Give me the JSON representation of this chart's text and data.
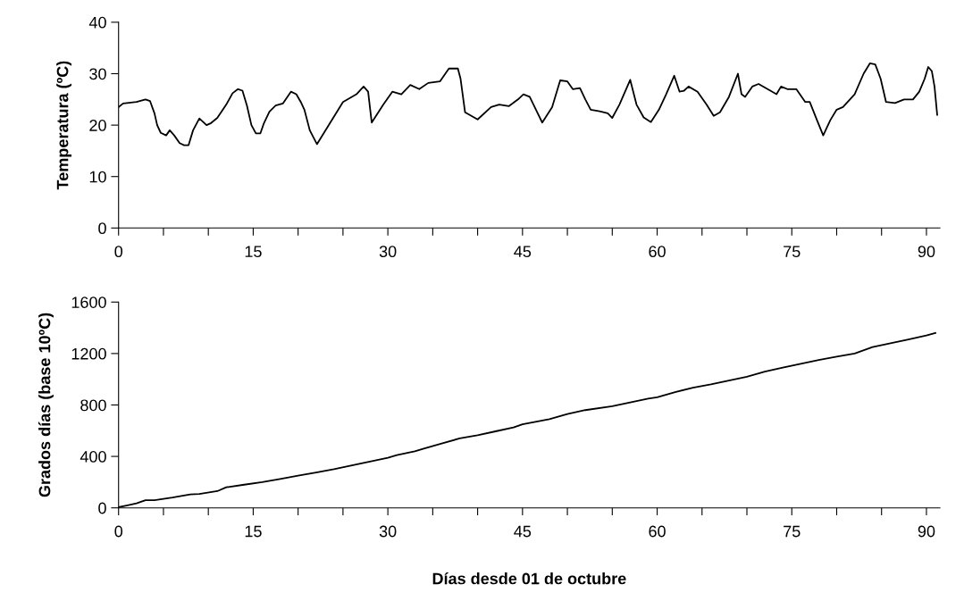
{
  "chart_data": [
    {
      "type": "line",
      "ylabel": "Temperatura (ºC)",
      "xlim": [
        0,
        91.5
      ],
      "ylim": [
        0,
        40
      ],
      "yticks": [
        0,
        10,
        20,
        30,
        40
      ],
      "xticks": [
        0,
        {
          "value": 5,
          "label": null
        },
        {
          "value": 10,
          "label": null
        },
        15,
        {
          "value": 20,
          "label": null
        },
        {
          "value": 25,
          "label": null
        },
        30,
        {
          "value": 35,
          "label": null
        },
        {
          "value": 40,
          "label": null
        },
        45,
        {
          "value": 50,
          "label": null
        },
        {
          "value": 55,
          "label": null
        },
        60,
        {
          "value": 65,
          "label": null
        },
        {
          "value": 70,
          "label": null
        },
        75,
        {
          "value": 80,
          "label": null
        },
        {
          "value": 85,
          "label": null
        },
        90
      ],
      "grid": false,
      "legend": false,
      "marker": "none",
      "line_style": "solid",
      "series": [
        {
          "color": "#000000",
          "x": [
            0,
            0.5,
            2,
            3,
            3.5,
            4,
            4.3,
            4.7,
            5.3,
            5.7,
            6.2,
            6.8,
            7.3,
            7.8,
            8.3,
            9,
            9.8,
            10.3,
            11,
            12,
            12.7,
            13.3,
            13.8,
            14.3,
            14.8,
            15.3,
            15.8,
            16.2,
            16.8,
            17.5,
            18.3,
            19.2,
            19.8,
            20.3,
            20.7,
            21.3,
            22.1,
            25,
            26.5,
            27.3,
            27.8,
            28.2,
            29.5,
            30.5,
            31.5,
            32.5,
            33.5,
            34.5,
            35.8,
            36.8,
            37.8,
            38.1,
            38.6,
            40,
            41.5,
            42.4,
            43.5,
            44.5,
            45.1,
            45.8,
            46.5,
            47.2,
            48.3,
            49.2,
            50,
            50.6,
            51.4,
            52,
            52.6,
            53.6,
            54.5,
            55,
            55.8,
            57,
            57.7,
            58.5,
            59.3,
            60.2,
            61,
            61.9,
            62.5,
            63,
            63.5,
            64.5,
            65.5,
            66.3,
            67,
            68,
            69,
            69.4,
            69.8,
            70.6,
            71.3,
            72.3,
            73.3,
            73.8,
            74.5,
            75.5,
            76.5,
            77,
            77.8,
            78.5,
            79.3,
            80,
            80.7,
            82,
            83,
            83.7,
            84.3,
            84.9,
            85.5,
            86.5,
            87.5,
            88.5,
            89.2,
            89.8,
            90.2,
            90.6,
            90.9,
            91.2
          ],
          "values": [
            23.5,
            24.2,
            24.5,
            25,
            24.7,
            22.3,
            20,
            18.5,
            18,
            19,
            18,
            16.5,
            16.1,
            16.1,
            19,
            21.3,
            20,
            20.4,
            21.4,
            24,
            26.2,
            27,
            26.7,
            23.8,
            20,
            18.4,
            18.4,
            20.4,
            22.6,
            23.8,
            24.2,
            26.5,
            26,
            24.5,
            23,
            19,
            16.3,
            24.5,
            26,
            27.5,
            26.5,
            20.5,
            24,
            26.5,
            26,
            27.8,
            27,
            28.2,
            28.5,
            31,
            31,
            29,
            22.5,
            21.1,
            23.5,
            24,
            23.7,
            25,
            26,
            25.5,
            23,
            20.5,
            23.5,
            28.7,
            28.5,
            27,
            27.2,
            25,
            23,
            22.7,
            22.3,
            21.4,
            24,
            28.8,
            24,
            21.5,
            20.6,
            23,
            26,
            29.6,
            26.5,
            26.7,
            27.5,
            26.5,
            24,
            21.8,
            22.5,
            25.5,
            30,
            26,
            25.5,
            27.5,
            28,
            27,
            26,
            27.5,
            27,
            27,
            24.5,
            24.5,
            21,
            18,
            21,
            23,
            23.5,
            26,
            30,
            32,
            31.8,
            29,
            24.5,
            24.3,
            25,
            25,
            26.5,
            29,
            31.3,
            30.5,
            27.5,
            22
          ]
        }
      ]
    },
    {
      "type": "line",
      "xlabel": "Días desde 01 de octubre",
      "ylabel": "Grados días (base 10ºC)",
      "xlim": [
        0,
        91.5
      ],
      "ylim": [
        0,
        1600
      ],
      "yticks": [
        0,
        400,
        800,
        1200,
        1600
      ],
      "xticks": [
        0,
        {
          "value": 5,
          "label": null
        },
        {
          "value": 10,
          "label": null
        },
        15,
        {
          "value": 20,
          "label": null
        },
        {
          "value": 25,
          "label": null
        },
        30,
        {
          "value": 35,
          "label": null
        },
        {
          "value": 40,
          "label": null
        },
        45,
        {
          "value": 50,
          "label": null
        },
        {
          "value": 55,
          "label": null
        },
        60,
        {
          "value": 65,
          "label": null
        },
        {
          "value": 70,
          "label": null
        },
        75,
        {
          "value": 80,
          "label": null
        },
        {
          "value": 85,
          "label": null
        },
        90
      ],
      "grid": false,
      "legend": false,
      "marker": "none",
      "line_style": "solid",
      "series": [
        {
          "color": "#000000",
          "x": [
            0,
            1,
            2,
            3,
            4,
            5,
            6,
            8,
            9,
            11,
            12,
            14,
            16,
            18,
            20,
            22,
            24,
            26,
            28,
            30,
            31,
            33,
            34,
            36,
            38,
            40,
            42,
            44,
            45,
            48,
            50,
            52,
            55,
            57,
            59,
            60,
            62,
            64,
            66,
            68,
            70,
            72,
            74,
            76,
            78,
            80,
            82,
            84,
            86,
            88,
            90,
            91
          ],
          "values": [
            5,
            20,
            35,
            60,
            60,
            70,
            80,
            105,
            108,
            130,
            160,
            180,
            200,
            225,
            250,
            275,
            300,
            330,
            360,
            390,
            410,
            440,
            460,
            500,
            540,
            565,
            595,
            625,
            650,
            690,
            730,
            760,
            790,
            820,
            850,
            860,
            900,
            935,
            960,
            990,
            1020,
            1060,
            1090,
            1120,
            1150,
            1175,
            1200,
            1250,
            1280,
            1310,
            1340,
            1360
          ]
        }
      ]
    }
  ]
}
